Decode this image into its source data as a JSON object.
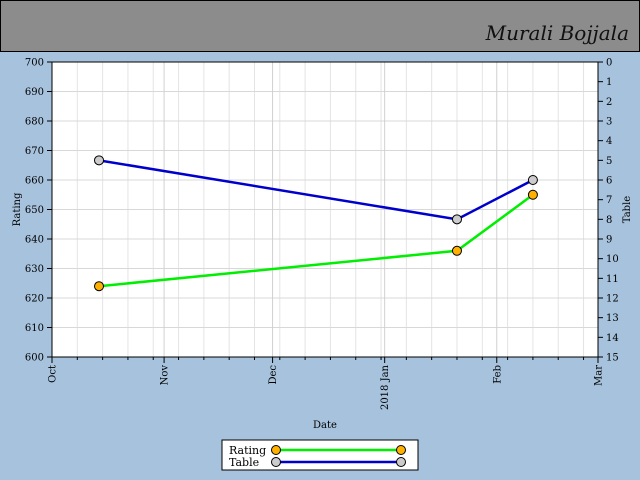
{
  "header": {
    "author": "Murali Bojjala"
  },
  "chart_data": {
    "type": "line",
    "xlabel": "Date",
    "ylabel": "Rating",
    "y2label": "Table",
    "ylim": [
      600,
      700
    ],
    "y2lim": [
      0,
      15
    ],
    "y2_inverted": true,
    "yticks": [
      600,
      610,
      620,
      630,
      640,
      650,
      660,
      670,
      680,
      690,
      700
    ],
    "y2ticks": [
      0,
      1,
      2,
      3,
      4,
      5,
      6,
      7,
      8,
      9,
      10,
      11,
      12,
      13,
      14,
      15
    ],
    "xlim": [
      "2017-10-01",
      "2018-03-01"
    ],
    "xticks": [
      {
        "date": "2017-10-01",
        "label": "Oct"
      },
      {
        "date": "2017-11-01",
        "label": "Nov"
      },
      {
        "date": "2017-12-01",
        "label": "Dec"
      },
      {
        "date": "2018-01-01",
        "label": "2018 Jan"
      },
      {
        "date": "2018-02-01",
        "label": "Feb"
      },
      {
        "date": "2018-03-01",
        "label": "Mar"
      }
    ],
    "grid": true,
    "legend_position": "bottom",
    "series": [
      {
        "name": "Rating",
        "axis": "left",
        "color": "#00ee00",
        "marker_color": "#ffb000",
        "points": [
          {
            "x": "2017-10-14",
            "y": 624
          },
          {
            "x": "2018-01-21",
            "y": 636
          },
          {
            "x": "2018-02-11",
            "y": 655
          }
        ]
      },
      {
        "name": "Table",
        "axis": "right",
        "color": "#0000cc",
        "marker_color": "#cccccc",
        "points": [
          {
            "x": "2017-10-14",
            "y": 5
          },
          {
            "x": "2018-01-21",
            "y": 8
          },
          {
            "x": "2018-02-11",
            "y": 6
          }
        ]
      }
    ]
  }
}
